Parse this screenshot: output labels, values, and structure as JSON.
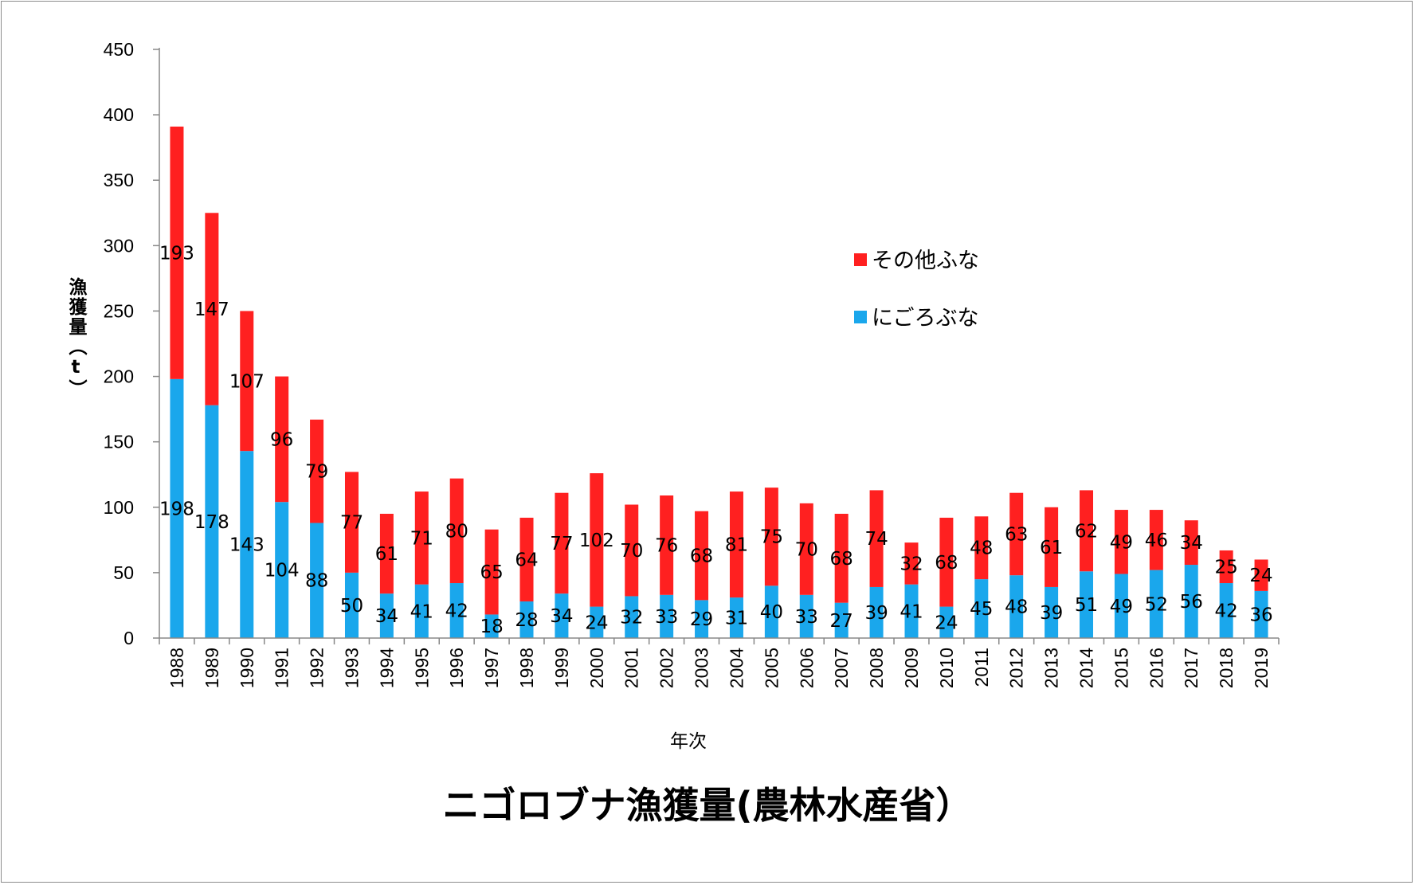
{
  "chart_data": {
    "type": "bar",
    "stacked": true,
    "title": "ニゴロブナ漁獲量(農林水産省）",
    "xlabel": "年次",
    "ylabel": "漁獲量（t）",
    "ylim": [
      0,
      450
    ],
    "yticks": [
      0,
      50,
      100,
      150,
      200,
      250,
      300,
      350,
      400,
      450
    ],
    "grid": false,
    "legend_position": "right",
    "categories": [
      "1988",
      "1989",
      "1990",
      "1991",
      "1992",
      "1993",
      "1994",
      "1995",
      "1996",
      "1997",
      "1998",
      "1999",
      "2000",
      "2001",
      "2002",
      "2003",
      "2004",
      "2005",
      "2006",
      "2007",
      "2008",
      "2009",
      "2010",
      "2011",
      "2012",
      "2013",
      "2014",
      "2015",
      "2016",
      "2017",
      "2018",
      "2019"
    ],
    "series": [
      {
        "name": "にごろぶな",
        "color": "#1aa7ec",
        "values": [
          198,
          178,
          143,
          104,
          88,
          50,
          34,
          41,
          42,
          18,
          28,
          34,
          24,
          32,
          33,
          29,
          31,
          40,
          33,
          27,
          39,
          41,
          24,
          45,
          48,
          39,
          51,
          49,
          52,
          56,
          42,
          36
        ]
      },
      {
        "name": "その他ふな",
        "color": "#ff2020",
        "values": [
          193,
          147,
          107,
          96,
          79,
          77,
          61,
          71,
          80,
          65,
          64,
          77,
          102,
          70,
          76,
          68,
          81,
          75,
          70,
          68,
          74,
          32,
          68,
          48,
          63,
          61,
          62,
          49,
          46,
          34,
          25,
          24
        ]
      }
    ]
  }
}
